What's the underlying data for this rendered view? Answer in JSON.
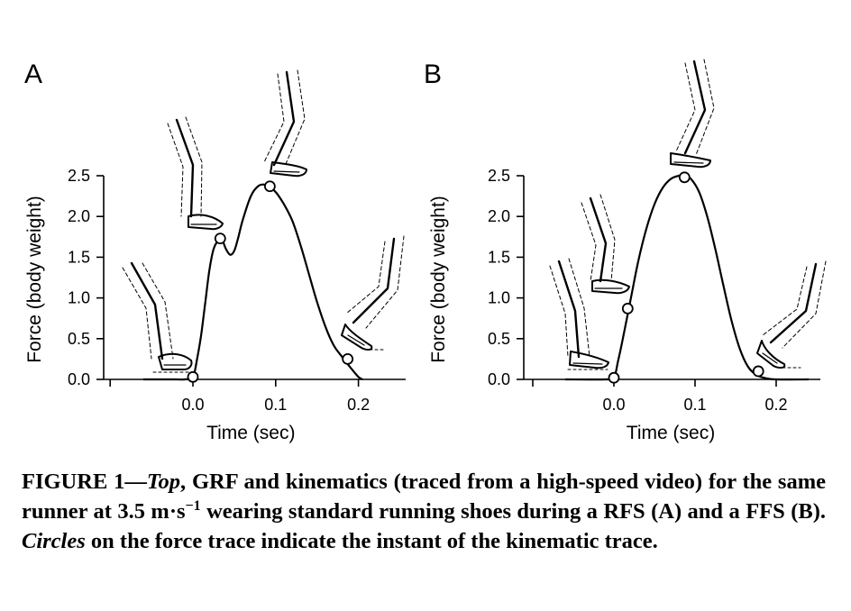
{
  "chart_data": [
    {
      "panel": "A",
      "type": "line",
      "xlabel": "Time (sec)",
      "ylabel": "Force (body weight)",
      "xticks": [
        "0.0",
        "0.1",
        "0.2"
      ],
      "yticks": [
        "0.0",
        "0.5",
        "1.0",
        "1.5",
        "2.0",
        "2.5"
      ],
      "xlim": [
        -0.1,
        0.25
      ],
      "ylim": [
        0,
        2.5
      ],
      "x": [
        -0.06,
        -0.02,
        -0.01,
        0.0,
        0.005,
        0.01,
        0.015,
        0.02,
        0.025,
        0.03,
        0.033,
        0.036,
        0.04,
        0.045,
        0.05,
        0.055,
        0.06,
        0.07,
        0.08,
        0.09,
        0.1,
        0.11,
        0.12,
        0.13,
        0.14,
        0.15,
        0.16,
        0.17,
        0.18,
        0.19,
        0.2,
        0.205
      ],
      "y": [
        0.0,
        0.0,
        0.0,
        0.03,
        0.25,
        0.55,
        0.95,
        1.35,
        1.6,
        1.7,
        1.73,
        1.7,
        1.6,
        1.53,
        1.58,
        1.75,
        1.95,
        2.25,
        2.38,
        2.38,
        2.3,
        2.15,
        1.95,
        1.65,
        1.3,
        0.95,
        0.65,
        0.42,
        0.28,
        0.15,
        0.03,
        0.0
      ],
      "markers": {
        "x": [
          0.0,
          0.033,
          0.093,
          0.187
        ],
        "y": [
          0.03,
          1.73,
          2.37,
          0.25
        ]
      }
    },
    {
      "panel": "B",
      "type": "line",
      "xlabel": "Time (sec)",
      "ylabel": "Force (body weight)",
      "xticks": [
        "0.0",
        "0.1",
        "0.2"
      ],
      "yticks": [
        "0.0",
        "0.5",
        "1.0",
        "1.5",
        "2.0",
        "2.5"
      ],
      "xlim": [
        -0.1,
        0.25
      ],
      "ylim": [
        0,
        2.5
      ],
      "x": [
        -0.06,
        -0.01,
        0.0,
        0.005,
        0.01,
        0.02,
        0.03,
        0.04,
        0.05,
        0.06,
        0.07,
        0.08,
        0.087,
        0.095,
        0.105,
        0.115,
        0.125,
        0.135,
        0.145,
        0.155,
        0.165,
        0.175,
        0.185,
        0.2,
        0.24
      ],
      "y": [
        0.0,
        0.0,
        0.02,
        0.22,
        0.45,
        0.95,
        1.45,
        1.85,
        2.15,
        2.35,
        2.46,
        2.5,
        2.5,
        2.46,
        2.3,
        2.0,
        1.6,
        1.15,
        0.72,
        0.38,
        0.16,
        0.06,
        0.02,
        0.0,
        0.0
      ],
      "markers": {
        "x": [
          0.0,
          0.017,
          0.087,
          0.178
        ],
        "y": [
          0.02,
          0.87,
          2.48,
          0.1
        ]
      }
    }
  ],
  "panels": [
    "A",
    "B"
  ],
  "caption": {
    "label": "FIGURE 1—",
    "top_word": "Top",
    "part1": ", GRF and kinematics (traced from a high-speed video) for the same runner at 3.5 m·s",
    "superscript": "−1",
    "part2": " wearing standard running shoes during a RFS (A) and a FFS (B). ",
    "circles_word": "Circles",
    "part3": " on the force trace indicate the instant of the kinematic trace."
  }
}
